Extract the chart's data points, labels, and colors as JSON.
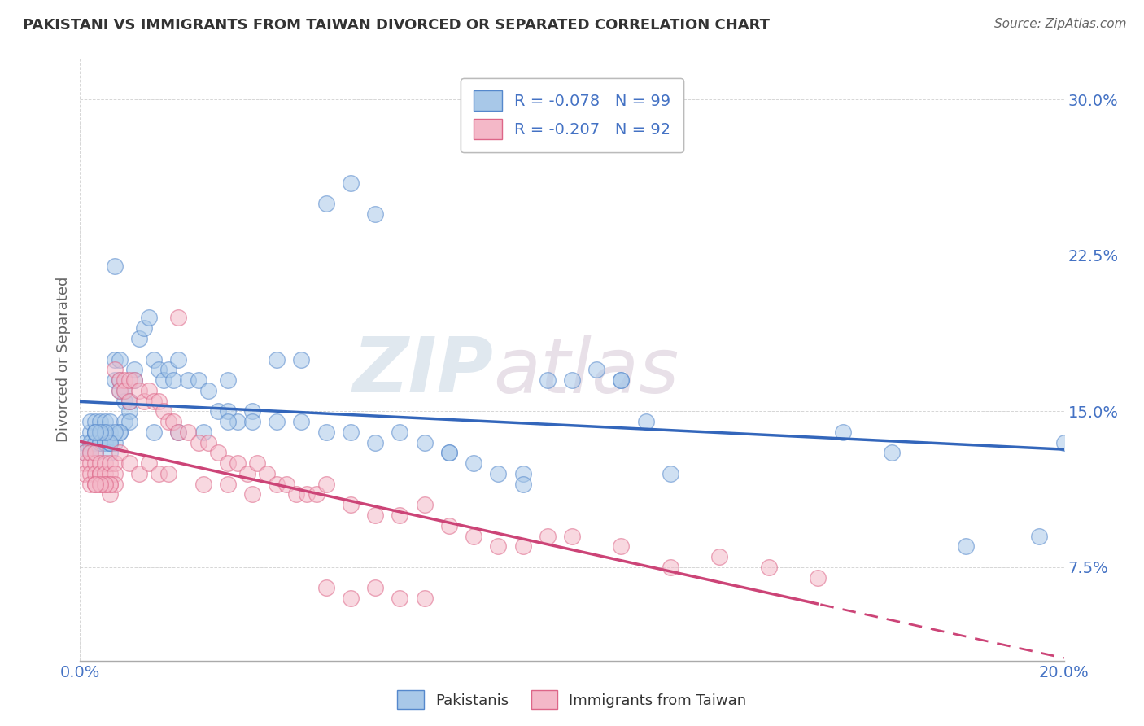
{
  "title": "PAKISTANI VS IMMIGRANTS FROM TAIWAN DIVORCED OR SEPARATED CORRELATION CHART",
  "source": "Source: ZipAtlas.com",
  "ylabel": "Divorced or Separated",
  "yticks": [
    0.075,
    0.15,
    0.225,
    0.3
  ],
  "ytick_labels": [
    "7.5%",
    "15.0%",
    "22.5%",
    "30.0%"
  ],
  "xlim": [
    0.0,
    0.2
  ],
  "ylim": [
    0.03,
    0.32
  ],
  "blue_R": -0.078,
  "blue_N": 99,
  "pink_R": -0.207,
  "pink_N": 92,
  "blue_fill_color": "#a8c8e8",
  "pink_fill_color": "#f4b8c8",
  "blue_edge_color": "#5588cc",
  "pink_edge_color": "#dd6688",
  "blue_line_color": "#3366bb",
  "pink_line_color": "#cc4477",
  "watermark_zip": "ZIP",
  "watermark_atlas": "atlas",
  "watermark_color_zip": "#bbccdd",
  "watermark_color_atlas": "#ccbbcc",
  "background_color": "#ffffff",
  "grid_color": "#cccccc",
  "title_color": "#333333",
  "axis_label_color": "#4472c4",
  "legend_text_color": "#4472c4",
  "blue_scatter_x": [
    0.001,
    0.001,
    0.002,
    0.002,
    0.002,
    0.002,
    0.003,
    0.003,
    0.003,
    0.003,
    0.003,
    0.004,
    0.004,
    0.004,
    0.004,
    0.005,
    0.005,
    0.005,
    0.005,
    0.005,
    0.006,
    0.006,
    0.006,
    0.006,
    0.006,
    0.007,
    0.007,
    0.007,
    0.007,
    0.008,
    0.008,
    0.008,
    0.008,
    0.009,
    0.009,
    0.009,
    0.01,
    0.01,
    0.011,
    0.011,
    0.012,
    0.013,
    0.014,
    0.015,
    0.016,
    0.017,
    0.018,
    0.019,
    0.02,
    0.022,
    0.024,
    0.026,
    0.028,
    0.03,
    0.032,
    0.035,
    0.04,
    0.045,
    0.05,
    0.055,
    0.06,
    0.065,
    0.07,
    0.075,
    0.08,
    0.085,
    0.09,
    0.095,
    0.1,
    0.105,
    0.11,
    0.115,
    0.12,
    0.05,
    0.055,
    0.06,
    0.04,
    0.045,
    0.03,
    0.035,
    0.025,
    0.02,
    0.015,
    0.01,
    0.008,
    0.007,
    0.006,
    0.005,
    0.004,
    0.003,
    0.155,
    0.165,
    0.18,
    0.195,
    0.2,
    0.03,
    0.075,
    0.09,
    0.11
  ],
  "blue_scatter_y": [
    0.135,
    0.13,
    0.14,
    0.135,
    0.13,
    0.145,
    0.14,
    0.135,
    0.13,
    0.145,
    0.14,
    0.135,
    0.14,
    0.135,
    0.145,
    0.14,
    0.135,
    0.14,
    0.135,
    0.145,
    0.135,
    0.14,
    0.13,
    0.145,
    0.135,
    0.22,
    0.175,
    0.165,
    0.135,
    0.175,
    0.165,
    0.16,
    0.14,
    0.155,
    0.16,
    0.145,
    0.15,
    0.155,
    0.165,
    0.17,
    0.185,
    0.19,
    0.195,
    0.175,
    0.17,
    0.165,
    0.17,
    0.165,
    0.175,
    0.165,
    0.165,
    0.16,
    0.15,
    0.15,
    0.145,
    0.15,
    0.145,
    0.145,
    0.14,
    0.14,
    0.135,
    0.14,
    0.135,
    0.13,
    0.125,
    0.12,
    0.12,
    0.165,
    0.165,
    0.17,
    0.165,
    0.145,
    0.12,
    0.25,
    0.26,
    0.245,
    0.175,
    0.175,
    0.145,
    0.145,
    0.14,
    0.14,
    0.14,
    0.145,
    0.14,
    0.14,
    0.135,
    0.14,
    0.14,
    0.14,
    0.14,
    0.13,
    0.085,
    0.09,
    0.135,
    0.165,
    0.13,
    0.115,
    0.165
  ],
  "pink_scatter_x": [
    0.001,
    0.001,
    0.001,
    0.002,
    0.002,
    0.002,
    0.002,
    0.003,
    0.003,
    0.003,
    0.003,
    0.004,
    0.004,
    0.004,
    0.004,
    0.005,
    0.005,
    0.005,
    0.005,
    0.006,
    0.006,
    0.006,
    0.006,
    0.007,
    0.007,
    0.007,
    0.007,
    0.008,
    0.008,
    0.008,
    0.009,
    0.009,
    0.01,
    0.01,
    0.011,
    0.012,
    0.013,
    0.014,
    0.015,
    0.016,
    0.017,
    0.018,
    0.019,
    0.02,
    0.022,
    0.024,
    0.026,
    0.028,
    0.03,
    0.032,
    0.034,
    0.036,
    0.038,
    0.04,
    0.042,
    0.044,
    0.046,
    0.048,
    0.05,
    0.055,
    0.06,
    0.065,
    0.07,
    0.075,
    0.08,
    0.085,
    0.09,
    0.095,
    0.1,
    0.11,
    0.12,
    0.13,
    0.14,
    0.15,
    0.02,
    0.025,
    0.03,
    0.035,
    0.01,
    0.012,
    0.014,
    0.016,
    0.018,
    0.006,
    0.005,
    0.004,
    0.003,
    0.05,
    0.055,
    0.06,
    0.065,
    0.07
  ],
  "pink_scatter_y": [
    0.125,
    0.12,
    0.13,
    0.125,
    0.12,
    0.115,
    0.13,
    0.125,
    0.12,
    0.115,
    0.13,
    0.12,
    0.125,
    0.115,
    0.12,
    0.115,
    0.125,
    0.12,
    0.115,
    0.12,
    0.115,
    0.125,
    0.11,
    0.125,
    0.12,
    0.115,
    0.17,
    0.165,
    0.16,
    0.13,
    0.165,
    0.16,
    0.155,
    0.165,
    0.165,
    0.16,
    0.155,
    0.16,
    0.155,
    0.155,
    0.15,
    0.145,
    0.145,
    0.14,
    0.14,
    0.135,
    0.135,
    0.13,
    0.125,
    0.125,
    0.12,
    0.125,
    0.12,
    0.115,
    0.115,
    0.11,
    0.11,
    0.11,
    0.115,
    0.105,
    0.1,
    0.1,
    0.105,
    0.095,
    0.09,
    0.085,
    0.085,
    0.09,
    0.09,
    0.085,
    0.075,
    0.08,
    0.075,
    0.07,
    0.195,
    0.115,
    0.115,
    0.11,
    0.125,
    0.12,
    0.125,
    0.12,
    0.12,
    0.115,
    0.115,
    0.115,
    0.115,
    0.065,
    0.06,
    0.065,
    0.06,
    0.06
  ]
}
